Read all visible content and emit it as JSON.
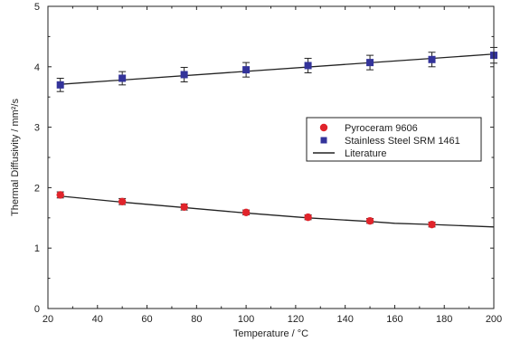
{
  "chart_data": {
    "type": "scatter",
    "xlabel": "Temperature / °C",
    "ylabel": "Thermal Diffusivity / mm²/s",
    "xlim": [
      20,
      200
    ],
    "ylim": [
      0,
      5
    ],
    "xticks": [
      20,
      40,
      60,
      80,
      100,
      120,
      140,
      160,
      180,
      200
    ],
    "yticks": [
      0,
      1,
      2,
      3,
      4,
      5
    ],
    "grid": false,
    "legend_position": "right-middle",
    "series": [
      {
        "name": "Pyroceram 9606",
        "marker": "circle",
        "color": "#e0242b",
        "x": [
          25,
          50,
          75,
          100,
          125,
          150,
          175
        ],
        "y": [
          1.88,
          1.77,
          1.68,
          1.59,
          1.51,
          1.45,
          1.39
        ],
        "error": [
          0.05,
          0.05,
          0.05,
          0.04,
          0.04,
          0.04,
          0.04
        ]
      },
      {
        "name": "Stainless Steel SRM 1461",
        "marker": "square",
        "color": "#33339a",
        "x": [
          25,
          50,
          75,
          100,
          125,
          150,
          175,
          200
        ],
        "y": [
          3.7,
          3.81,
          3.87,
          3.95,
          4.02,
          4.07,
          4.12,
          4.19
        ],
        "error": [
          0.11,
          0.11,
          0.12,
          0.12,
          0.12,
          0.12,
          0.12,
          0.13
        ]
      },
      {
        "name": "Literature",
        "marker": "line",
        "color": "#222222",
        "lines": [
          {
            "x": [
              25,
              200
            ],
            "y": [
              3.71,
              4.21
            ]
          },
          {
            "x": [
              25,
              50,
              75,
              100,
              125,
              150,
              160,
              175,
              200
            ],
            "y": [
              1.86,
              1.76,
              1.67,
              1.58,
              1.5,
              1.44,
              1.41,
              1.39,
              1.35
            ]
          }
        ]
      }
    ]
  }
}
